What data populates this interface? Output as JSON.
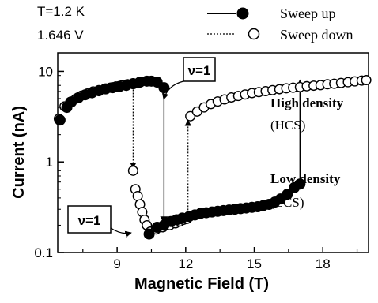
{
  "chart_data": {
    "type": "scatter",
    "xlabel": "Magnetic Field (T)",
    "ylabel": "Current (nA)",
    "x_ticks": [
      {
        "value": 9,
        "label": "9"
      },
      {
        "value": 12,
        "label": "12"
      },
      {
        "value": 15,
        "label": "15"
      },
      {
        "value": 18,
        "label": "18"
      }
    ],
    "y_ticks": [
      {
        "value": 0.1,
        "label": "0.1"
      },
      {
        "value": 1,
        "label": "1"
      },
      {
        "value": 10,
        "label": "10"
      }
    ],
    "xlim": [
      6.4,
      20.0
    ],
    "ylim": [
      0.1,
      16
    ],
    "yscale": "log",
    "conditions": [
      "T=1.2 K",
      "1.646 V"
    ],
    "legend": [
      {
        "name": "Sweep up",
        "line": "solid",
        "marker": "filled-circle"
      },
      {
        "name": "Sweep down",
        "line": "dotted",
        "marker": "open-circle"
      }
    ],
    "annotations": {
      "nu_upper": "ν=1",
      "nu_lower": "ν=1",
      "high_density": "High density",
      "hcs": "(HCS)",
      "low_density": "Low density",
      "lcs": "(LCS)"
    },
    "series": [
      {
        "name": "Sweep up",
        "marker": "filled",
        "points": [
          [
            6.5,
            2.9
          ],
          [
            6.8,
            4.0
          ],
          [
            7.0,
            4.6
          ],
          [
            7.3,
            5.1
          ],
          [
            7.6,
            5.5
          ],
          [
            7.9,
            5.8
          ],
          [
            8.2,
            6.1
          ],
          [
            8.5,
            6.4
          ],
          [
            8.8,
            6.6
          ],
          [
            9.1,
            6.8
          ],
          [
            9.4,
            7.0
          ],
          [
            9.7,
            7.3
          ],
          [
            10.0,
            7.6
          ],
          [
            10.3,
            7.8
          ],
          [
            10.5,
            7.8
          ],
          [
            10.75,
            7.6
          ],
          [
            11.05,
            6.6
          ],
          [
            10.4,
            0.16
          ],
          [
            10.75,
            0.19
          ],
          [
            11.05,
            0.2
          ],
          [
            11.35,
            0.22
          ],
          [
            11.6,
            0.23
          ],
          [
            11.85,
            0.24
          ],
          [
            12.15,
            0.25
          ],
          [
            12.4,
            0.26
          ],
          [
            12.65,
            0.27
          ],
          [
            12.9,
            0.275
          ],
          [
            13.15,
            0.28
          ],
          [
            13.4,
            0.285
          ],
          [
            13.65,
            0.29
          ],
          [
            13.9,
            0.295
          ],
          [
            14.15,
            0.3
          ],
          [
            14.4,
            0.305
          ],
          [
            14.65,
            0.31
          ],
          [
            14.9,
            0.315
          ],
          [
            15.15,
            0.32
          ],
          [
            15.4,
            0.33
          ],
          [
            15.65,
            0.34
          ],
          [
            15.9,
            0.36
          ],
          [
            16.15,
            0.39
          ],
          [
            16.45,
            0.44
          ],
          [
            16.75,
            0.52
          ],
          [
            17.0,
            0.57
          ]
        ]
      },
      {
        "name": "Sweep down",
        "marker": "open",
        "points": [
          [
            6.45,
            3.0
          ],
          [
            6.7,
            4.1
          ],
          [
            6.95,
            4.6
          ],
          [
            7.2,
            5.0
          ],
          [
            7.45,
            5.4
          ],
          [
            7.7,
            5.7
          ],
          [
            7.95,
            6.0
          ],
          [
            8.2,
            6.2
          ],
          [
            8.45,
            6.4
          ],
          [
            8.7,
            6.6
          ],
          [
            8.95,
            6.8
          ],
          [
            9.2,
            7.0
          ],
          [
            9.45,
            7.2
          ],
          [
            9.7,
            7.4
          ],
          [
            9.95,
            7.5
          ],
          [
            9.7,
            0.8
          ],
          [
            9.8,
            0.5
          ],
          [
            9.9,
            0.42
          ],
          [
            10.0,
            0.34
          ],
          [
            10.1,
            0.28
          ],
          [
            10.2,
            0.23
          ],
          [
            10.3,
            0.2
          ],
          [
            10.45,
            0.17
          ],
          [
            10.7,
            0.18
          ],
          [
            11.0,
            0.19
          ],
          [
            11.3,
            0.2
          ],
          [
            11.55,
            0.21
          ],
          [
            11.75,
            0.22
          ],
          [
            11.9,
            0.23
          ],
          [
            12.05,
            0.235
          ],
          [
            12.2,
            3.2
          ],
          [
            12.5,
            3.6
          ],
          [
            12.8,
            4.0
          ],
          [
            13.1,
            4.35
          ],
          [
            13.4,
            4.65
          ],
          [
            13.7,
            4.9
          ],
          [
            14.0,
            5.15
          ],
          [
            14.3,
            5.35
          ],
          [
            14.6,
            5.55
          ],
          [
            14.9,
            5.75
          ],
          [
            15.2,
            5.9
          ],
          [
            15.5,
            6.05
          ],
          [
            15.8,
            6.2
          ],
          [
            16.1,
            6.35
          ],
          [
            16.4,
            6.5
          ],
          [
            16.7,
            6.6
          ],
          [
            17.0,
            6.7
          ],
          [
            17.3,
            6.85
          ],
          [
            17.6,
            6.95
          ],
          [
            17.9,
            7.05
          ],
          [
            18.2,
            7.2
          ],
          [
            18.5,
            7.3
          ],
          [
            18.8,
            7.45
          ],
          [
            19.1,
            7.6
          ],
          [
            19.4,
            7.75
          ],
          [
            19.7,
            7.9
          ],
          [
            19.9,
            8.0
          ]
        ]
      }
    ],
    "transitions": [
      {
        "from": [
          9.7,
          7.4
        ],
        "to": [
          9.7,
          0.85
        ],
        "style": "dotted"
      },
      {
        "from": [
          11.05,
          6.0
        ],
        "to": [
          11.05,
          0.21
        ],
        "style": "solid"
      },
      {
        "from": [
          12.1,
          0.25
        ],
        "to": [
          12.1,
          2.9
        ],
        "style": "dotted"
      },
      {
        "from": [
          17.0,
          0.6
        ],
        "to": [
          17.0,
          8.0
        ],
        "style": "solid"
      }
    ]
  }
}
